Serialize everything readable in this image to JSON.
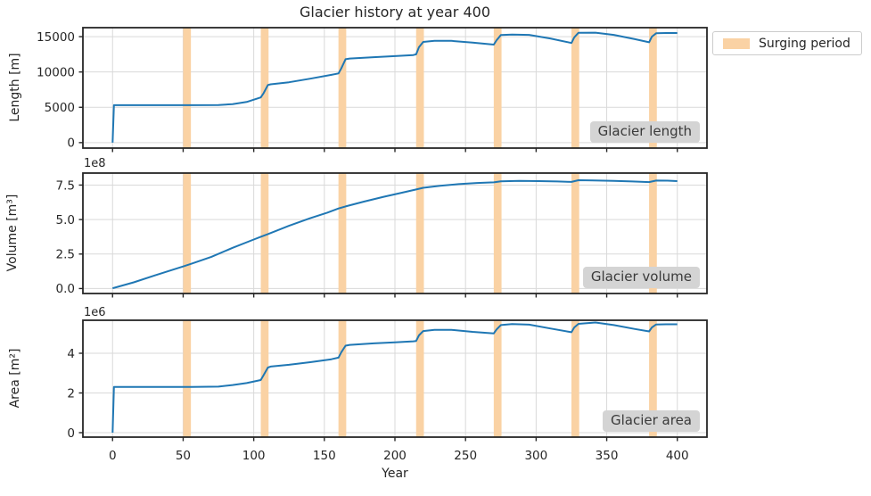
{
  "title": "Glacier history at year 400",
  "legend": {
    "label": "Surging period"
  },
  "colors": {
    "line": "#1f77b4",
    "surge_band": "#fad2a4",
    "grid": "#d9d9d9",
    "spine": "#262626",
    "text": "#262626",
    "corner_box_bg": "#d4d4d4",
    "corner_box_text": "#3a3a3a",
    "legend_border": "#cccccc"
  },
  "x_axis": {
    "label": "Year",
    "xlim": [
      -21,
      421
    ],
    "ticks": [
      0,
      50,
      100,
      150,
      200,
      250,
      300,
      350,
      400
    ],
    "tick_labels": [
      "0",
      "50",
      "100",
      "150",
      "200",
      "250",
      "300",
      "350",
      "400"
    ],
    "surging_periods": [
      [
        50,
        55.5
      ],
      [
        105,
        110.5
      ],
      [
        160,
        165.5
      ],
      [
        215,
        220.5
      ],
      [
        270,
        275.5
      ],
      [
        325,
        330.5
      ],
      [
        380,
        385.5
      ]
    ]
  },
  "chart_data": [
    {
      "type": "line",
      "name": "glacier-length",
      "ylabel": "Length [m]",
      "corner_label": "Glacier length",
      "offset_label": "",
      "unit": "m",
      "ylim": [
        -775,
        16275
      ],
      "yticks": [
        0,
        5000,
        10000,
        15000
      ],
      "ytick_labels": [
        "0",
        "5000",
        "10000",
        "15000"
      ],
      "points": [
        [
          0,
          0
        ],
        [
          1,
          5300
        ],
        [
          20,
          5300
        ],
        [
          50,
          5300
        ],
        [
          56,
          5300
        ],
        [
          75,
          5320
        ],
        [
          85,
          5450
        ],
        [
          95,
          5750
        ],
        [
          105,
          6400
        ],
        [
          107,
          7000
        ],
        [
          110,
          8150
        ],
        [
          112,
          8250
        ],
        [
          125,
          8550
        ],
        [
          140,
          9050
        ],
        [
          155,
          9600
        ],
        [
          160,
          9800
        ],
        [
          162,
          10500
        ],
        [
          165,
          11800
        ],
        [
          168,
          11900
        ],
        [
          185,
          12100
        ],
        [
          200,
          12250
        ],
        [
          213,
          12400
        ],
        [
          215,
          12500
        ],
        [
          217,
          13500
        ],
        [
          220,
          14250
        ],
        [
          228,
          14400
        ],
        [
          240,
          14400
        ],
        [
          255,
          14150
        ],
        [
          270,
          13870
        ],
        [
          272,
          14500
        ],
        [
          275,
          15230
        ],
        [
          283,
          15300
        ],
        [
          295,
          15250
        ],
        [
          310,
          14750
        ],
        [
          325,
          14100
        ],
        [
          327,
          14900
        ],
        [
          330,
          15550
        ],
        [
          342,
          15570
        ],
        [
          355,
          15250
        ],
        [
          370,
          14650
        ],
        [
          380,
          14200
        ],
        [
          382,
          15000
        ],
        [
          385,
          15480
        ],
        [
          392,
          15520
        ],
        [
          400,
          15520
        ]
      ]
    },
    {
      "type": "line",
      "name": "glacier-volume",
      "ylabel": "Volume [m³]",
      "corner_label": "Glacier volume",
      "offset_label": "1e8",
      "unit": "1e8 m³",
      "ylim": [
        -0.36,
        8.37
      ],
      "yticks": [
        0,
        2.5,
        5,
        7.5
      ],
      "ytick_labels": [
        "0.0",
        "2.5",
        "5.0",
        "7.5"
      ],
      "points": [
        [
          0,
          0.02
        ],
        [
          15,
          0.45
        ],
        [
          30,
          0.95
        ],
        [
          50,
          1.6
        ],
        [
          56,
          1.8
        ],
        [
          70,
          2.3
        ],
        [
          85,
          2.95
        ],
        [
          100,
          3.55
        ],
        [
          105,
          3.75
        ],
        [
          110,
          3.95
        ],
        [
          125,
          4.55
        ],
        [
          140,
          5.1
        ],
        [
          152,
          5.5
        ],
        [
          160,
          5.8
        ],
        [
          165,
          5.95
        ],
        [
          178,
          6.3
        ],
        [
          192,
          6.65
        ],
        [
          205,
          6.95
        ],
        [
          215,
          7.18
        ],
        [
          220,
          7.3
        ],
        [
          232,
          7.45
        ],
        [
          245,
          7.57
        ],
        [
          258,
          7.65
        ],
        [
          270,
          7.7
        ],
        [
          275,
          7.77
        ],
        [
          288,
          7.8
        ],
        [
          302,
          7.79
        ],
        [
          315,
          7.76
        ],
        [
          325,
          7.73
        ],
        [
          330,
          7.85
        ],
        [
          340,
          7.84
        ],
        [
          355,
          7.8
        ],
        [
          368,
          7.76
        ],
        [
          380,
          7.72
        ],
        [
          385,
          7.83
        ],
        [
          393,
          7.82
        ],
        [
          400,
          7.79
        ]
      ]
    },
    {
      "type": "line",
      "name": "glacier-area",
      "ylabel": "Area [m²]",
      "corner_label": "Glacier area",
      "offset_label": "1e6",
      "unit": "1e6 m²",
      "ylim": [
        -0.225,
        5.662
      ],
      "yticks": [
        0,
        2,
        4
      ],
      "ytick_labels": [
        "0",
        "2",
        "4"
      ],
      "points": [
        [
          0,
          0
        ],
        [
          1,
          2.3
        ],
        [
          20,
          2.3
        ],
        [
          50,
          2.3
        ],
        [
          56,
          2.3
        ],
        [
          75,
          2.32
        ],
        [
          85,
          2.4
        ],
        [
          95,
          2.5
        ],
        [
          105,
          2.65
        ],
        [
          107,
          2.9
        ],
        [
          110,
          3.28
        ],
        [
          112,
          3.33
        ],
        [
          125,
          3.42
        ],
        [
          140,
          3.55
        ],
        [
          155,
          3.7
        ],
        [
          160,
          3.78
        ],
        [
          162,
          4.05
        ],
        [
          165,
          4.38
        ],
        [
          168,
          4.42
        ],
        [
          185,
          4.5
        ],
        [
          200,
          4.55
        ],
        [
          213,
          4.6
        ],
        [
          215,
          4.62
        ],
        [
          217,
          4.9
        ],
        [
          220,
          5.12
        ],
        [
          228,
          5.18
        ],
        [
          240,
          5.18
        ],
        [
          255,
          5.08
        ],
        [
          270,
          5.0
        ],
        [
          272,
          5.2
        ],
        [
          275,
          5.42
        ],
        [
          283,
          5.47
        ],
        [
          295,
          5.44
        ],
        [
          310,
          5.25
        ],
        [
          325,
          5.06
        ],
        [
          327,
          5.3
        ],
        [
          330,
          5.48
        ],
        [
          342,
          5.55
        ],
        [
          355,
          5.42
        ],
        [
          370,
          5.22
        ],
        [
          380,
          5.1
        ],
        [
          382,
          5.3
        ],
        [
          385,
          5.45
        ],
        [
          392,
          5.46
        ],
        [
          400,
          5.46
        ]
      ]
    }
  ]
}
